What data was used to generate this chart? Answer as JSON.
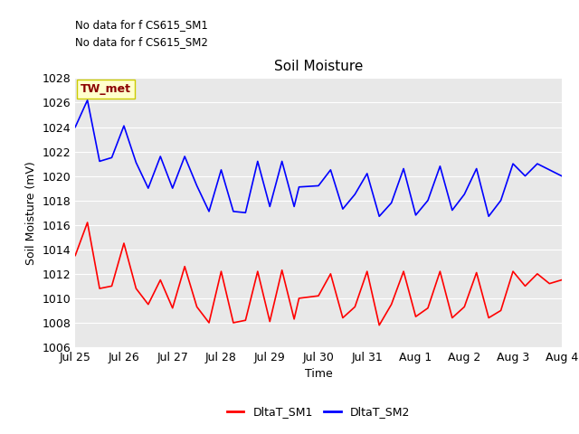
{
  "title": "Soil Moisture",
  "ylabel": "Soil Moisture (mV)",
  "xlabel": "Time",
  "ylim": [
    1006,
    1028
  ],
  "bg_color": "#e8e8e8",
  "no_data_text1": "No data for f CS615_SM1",
  "no_data_text2": "No data for f CS615_SM2",
  "tw_met_label": "TW_met",
  "sm1_color": "red",
  "sm2_color": "blue",
  "sm1_label": "DltaT_SM1",
  "sm2_label": "DltaT_SM2",
  "x_ticks": [
    "Jul 25",
    "Jul 26",
    "Jul 27",
    "Jul 28",
    "Jul 29",
    "Jul 30",
    "Jul 31",
    "Aug 1",
    "Aug 2",
    "Aug 3",
    "Aug 4"
  ],
  "sm1_x": [
    0.0,
    0.25,
    0.5,
    0.75,
    1.0,
    1.25,
    1.5,
    1.75,
    2.0,
    2.25,
    2.5,
    2.75,
    3.0,
    3.25,
    3.5,
    3.75,
    4.0,
    4.25,
    4.5,
    4.6,
    5.0,
    5.25,
    5.5,
    5.75,
    6.0,
    6.25,
    6.5,
    6.75,
    7.0,
    7.25,
    7.5,
    7.75,
    8.0,
    8.25,
    8.5,
    8.75,
    9.0,
    9.25,
    9.5,
    9.75,
    10.0
  ],
  "sm1_y": [
    1013.5,
    1016.2,
    1010.8,
    1011.0,
    1014.5,
    1010.8,
    1009.5,
    1011.5,
    1009.2,
    1012.6,
    1009.3,
    1008.0,
    1012.2,
    1008.0,
    1008.2,
    1012.2,
    1008.1,
    1012.3,
    1008.3,
    1010.0,
    1010.2,
    1012.0,
    1008.4,
    1009.3,
    1012.2,
    1007.8,
    1009.5,
    1012.2,
    1008.5,
    1009.2,
    1012.2,
    1008.4,
    1009.3,
    1012.1,
    1008.4,
    1009.0,
    1012.2,
    1011.0,
    1012.0,
    1011.2,
    1011.5
  ],
  "sm2_x": [
    0.0,
    0.25,
    0.5,
    0.75,
    1.0,
    1.25,
    1.5,
    1.75,
    2.0,
    2.25,
    2.5,
    2.75,
    3.0,
    3.25,
    3.5,
    3.75,
    4.0,
    4.25,
    4.5,
    4.6,
    5.0,
    5.25,
    5.5,
    5.75,
    6.0,
    6.25,
    6.5,
    6.75,
    7.0,
    7.25,
    7.5,
    7.75,
    8.0,
    8.25,
    8.5,
    8.75,
    9.0,
    9.25,
    9.5,
    9.75,
    10.0
  ],
  "sm2_y": [
    1024.0,
    1026.2,
    1021.2,
    1021.5,
    1024.1,
    1021.1,
    1019.0,
    1021.6,
    1019.0,
    1021.6,
    1019.2,
    1017.1,
    1020.5,
    1017.1,
    1017.0,
    1021.2,
    1017.5,
    1021.2,
    1017.5,
    1019.1,
    1019.2,
    1020.5,
    1017.3,
    1018.5,
    1020.2,
    1016.7,
    1017.8,
    1020.6,
    1016.8,
    1018.0,
    1020.8,
    1017.2,
    1018.5,
    1020.6,
    1016.7,
    1018.0,
    1021.0,
    1020.0,
    1021.0,
    1020.5,
    1020.0
  ],
  "title_fontsize": 11,
  "label_fontsize": 9,
  "tick_fontsize": 9,
  "legend_fontsize": 9
}
